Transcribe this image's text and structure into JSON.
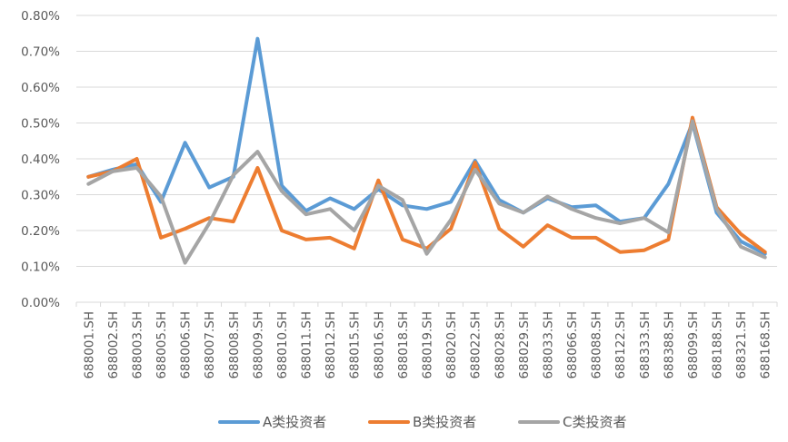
{
  "chart_data": {
    "type": "line",
    "title": "",
    "xlabel": "",
    "ylabel": "",
    "ylim": [
      0,
      0.8
    ],
    "y_ticks": [
      "0.00%",
      "0.10%",
      "0.20%",
      "0.30%",
      "0.40%",
      "0.50%",
      "0.60%",
      "0.70%",
      "0.80%"
    ],
    "y_tick_values": [
      0,
      0.1,
      0.2,
      0.3,
      0.4,
      0.5,
      0.6,
      0.7,
      0.8
    ],
    "grid": true,
    "legend_position": "bottom",
    "categories": [
      "688001.SH",
      "688002.SH",
      "688003.SH",
      "688005.SH",
      "688006.SH",
      "688007.SH",
      "688008.SH",
      "688009.SH",
      "688010.SH",
      "688011.SH",
      "688012.SH",
      "688015.SH",
      "688016.SH",
      "688018.SH",
      "688019.SH",
      "688020.SH",
      "688022.SH",
      "688028.SH",
      "688029.SH",
      "688033.SH",
      "688066.SH",
      "688088.SH",
      "688122.SH",
      "688333.SH",
      "688388.SH",
      "688099.SH",
      "688188.SH",
      "688321.SH",
      "688168.SH"
    ],
    "series": [
      {
        "name": "A类投资者",
        "color": "#5b9bd5",
        "values": [
          0.35,
          0.37,
          0.385,
          0.28,
          0.445,
          0.32,
          0.35,
          0.735,
          0.325,
          0.255,
          0.29,
          0.26,
          0.315,
          0.27,
          0.26,
          0.28,
          0.395,
          0.285,
          0.25,
          0.29,
          0.265,
          0.27,
          0.225,
          0.235,
          0.33,
          0.5,
          0.25,
          0.17,
          0.135
        ]
      },
      {
        "name": "B类投资者",
        "color": "#ed7d31",
        "values": [
          0.35,
          0.365,
          0.4,
          0.18,
          0.205,
          0.235,
          0.225,
          0.375,
          0.2,
          0.175,
          0.18,
          0.15,
          0.34,
          0.175,
          0.15,
          0.205,
          0.39,
          0.205,
          0.155,
          0.215,
          0.18,
          0.18,
          0.14,
          0.145,
          0.175,
          0.515,
          0.265,
          0.19,
          0.14
        ]
      },
      {
        "name": "C类投资者",
        "color": "#a5a5a5",
        "values": [
          0.33,
          0.365,
          0.375,
          0.295,
          0.11,
          0.22,
          0.355,
          0.42,
          0.31,
          0.245,
          0.26,
          0.2,
          0.325,
          0.285,
          0.135,
          0.23,
          0.37,
          0.275,
          0.25,
          0.295,
          0.26,
          0.235,
          0.22,
          0.235,
          0.195,
          0.505,
          0.26,
          0.155,
          0.125
        ]
      }
    ]
  }
}
